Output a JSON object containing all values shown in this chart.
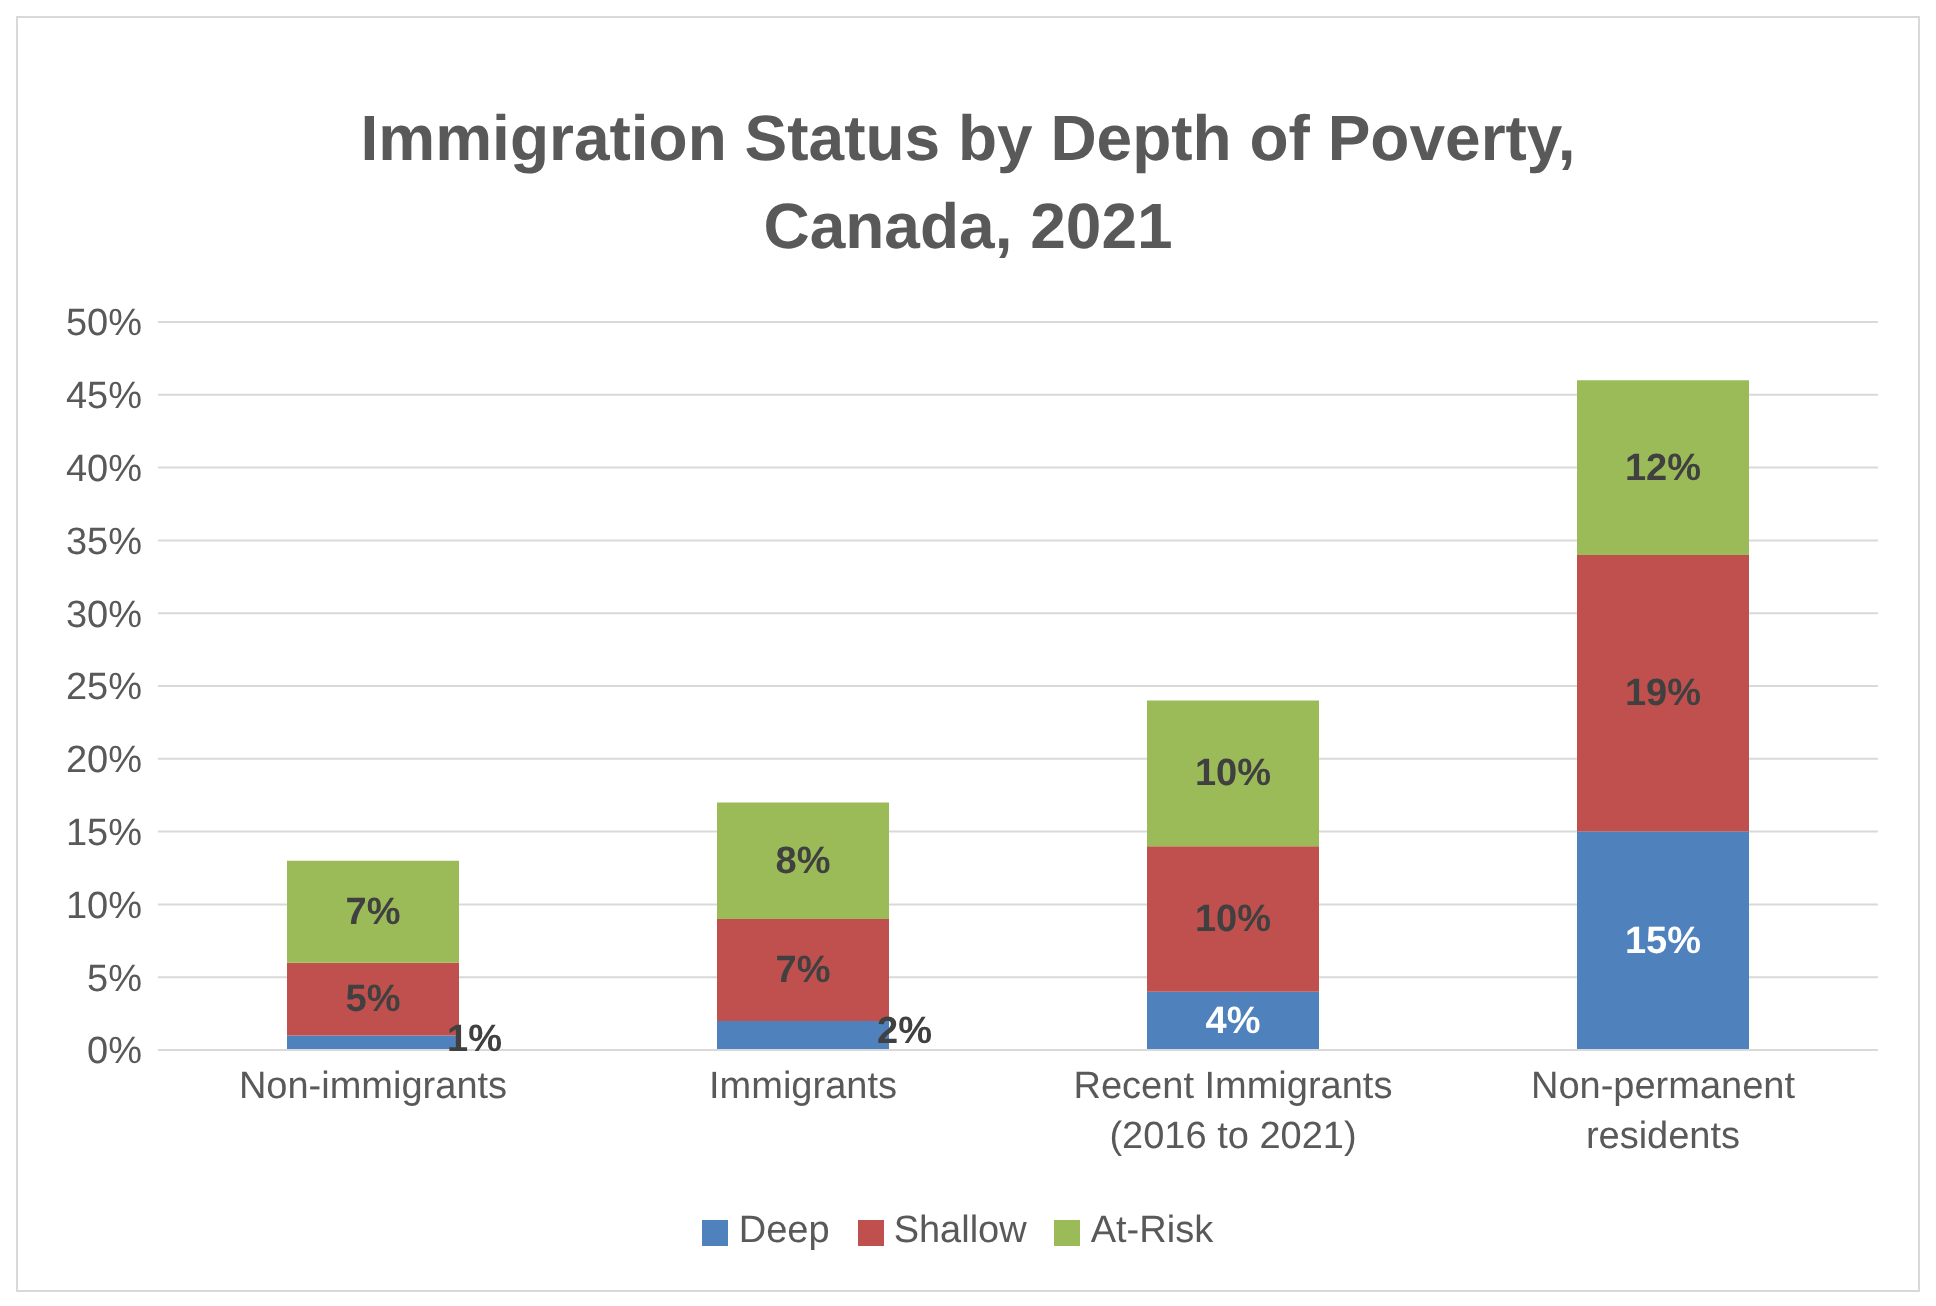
{
  "chart_data": {
    "type": "bar",
    "title": "Immigration Status by Depth of Poverty, Canada, 2021",
    "categories": [
      "Non-immigrants",
      "Immigrants",
      "Recent Immigrants (2016 to 2021)",
      "Non-permanent residents"
    ],
    "series": [
      {
        "name": "Deep",
        "color": "#4f81bd",
        "values": [
          1,
          2,
          4,
          15
        ],
        "value_labels": [
          "1%",
          "2%",
          "4%",
          "15%"
        ]
      },
      {
        "name": "Shallow",
        "color": "#c0504d",
        "values": [
          5,
          7,
          10,
          19
        ],
        "value_labels": [
          "5%",
          "7%",
          "10%",
          "19%"
        ]
      },
      {
        "name": "At-Risk",
        "color": "#9bbb59",
        "values": [
          7,
          8,
          10,
          12
        ],
        "value_labels": [
          "7%",
          "8%",
          "10%",
          "12%"
        ]
      }
    ],
    "stacked": true,
    "ylim": [
      0,
      50
    ],
    "yticks": [
      {
        "value": 0,
        "label": "0%"
      },
      {
        "value": 5,
        "label": "5%"
      },
      {
        "value": 10,
        "label": "10%"
      },
      {
        "value": 15,
        "label": "15%"
      },
      {
        "value": 20,
        "label": "20%"
      },
      {
        "value": 25,
        "label": "25%"
      },
      {
        "value": 30,
        "label": "30%"
      },
      {
        "value": 35,
        "label": "35%"
      },
      {
        "value": 40,
        "label": "40%"
      },
      {
        "value": 45,
        "label": "45%"
      },
      {
        "value": 50,
        "label": "50%"
      }
    ],
    "grid": "y",
    "legend": "bottom"
  }
}
